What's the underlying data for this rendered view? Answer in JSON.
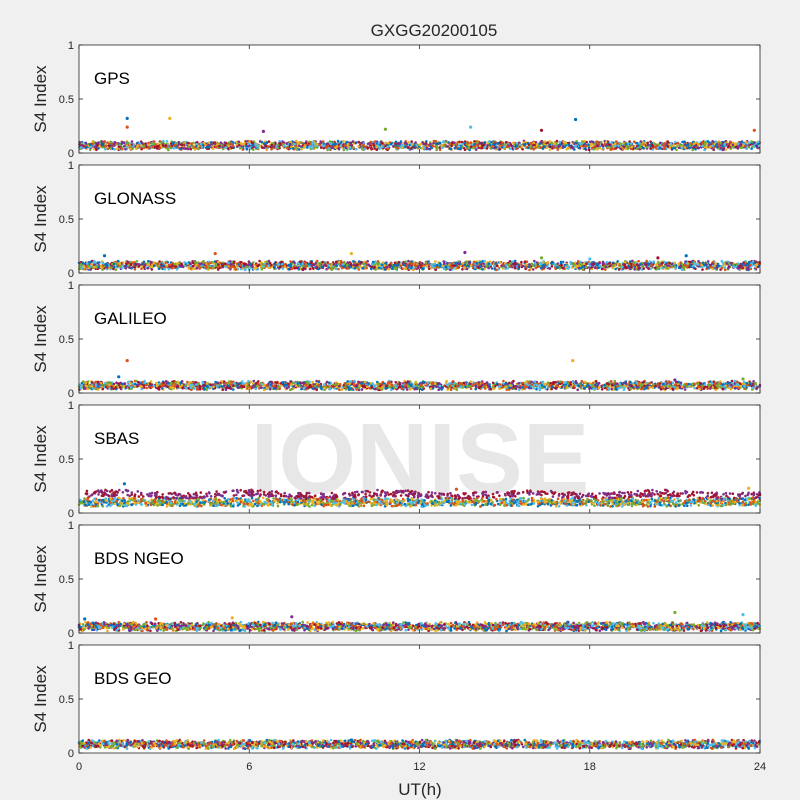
{
  "chart_data": {
    "type": "scatter",
    "title": "GXGG20200105",
    "watermark": "IONISE",
    "xlabel": "UT(h)",
    "xlim": [
      0,
      24
    ],
    "xticks": [
      "0",
      "6",
      "12",
      "18",
      "24"
    ],
    "grid": false,
    "palette": [
      "#0072bd",
      "#d95319",
      "#edb120",
      "#7e2f8e",
      "#77ac30",
      "#4dbeee",
      "#a2142f"
    ],
    "panels": [
      {
        "label": "GPS",
        "ylabel": "S4 Index",
        "ylim": [
          0,
          1
        ],
        "yticks": [
          "0",
          "0.5",
          "1"
        ],
        "baseline": 0.07,
        "outliers": [
          [
            1.7,
            0.32
          ],
          [
            1.7,
            0.24
          ],
          [
            3.2,
            0.32
          ],
          [
            6.5,
            0.2
          ],
          [
            10.8,
            0.22
          ],
          [
            13.8,
            0.24
          ],
          [
            16.3,
            0.21
          ],
          [
            17.5,
            0.31
          ],
          [
            23.8,
            0.21
          ]
        ]
      },
      {
        "label": "GLONASS",
        "ylabel": "S4 Index",
        "ylim": [
          0,
          1
        ],
        "yticks": [
          "0",
          "0.5",
          "1"
        ],
        "baseline": 0.07,
        "outliers": [
          [
            0.9,
            0.16
          ],
          [
            4.8,
            0.18
          ],
          [
            9.6,
            0.18
          ],
          [
            13.6,
            0.19
          ],
          [
            16.3,
            0.14
          ],
          [
            18.0,
            0.13
          ],
          [
            20.4,
            0.14
          ],
          [
            21.4,
            0.16
          ]
        ]
      },
      {
        "label": "GALILEO",
        "ylabel": "S4 Index",
        "ylim": [
          0,
          1
        ],
        "yticks": [
          "0",
          "0.5",
          "1"
        ],
        "baseline": 0.07,
        "outliers": [
          [
            1.4,
            0.15
          ],
          [
            1.7,
            0.3
          ],
          [
            17.4,
            0.3
          ],
          [
            21.0,
            0.12
          ],
          [
            23.4,
            0.13
          ]
        ]
      },
      {
        "label": "SBAS",
        "ylabel": "S4 Index",
        "ylim": [
          0,
          1
        ],
        "yticks": [
          "0",
          "0.5",
          "1"
        ],
        "baseline": 0.1,
        "upper_band": 0.17,
        "outliers": [
          [
            1.6,
            0.27
          ],
          [
            13.3,
            0.22
          ],
          [
            23.6,
            0.23
          ]
        ]
      },
      {
        "label": "BDS NGEO",
        "ylabel": "S4 Index",
        "ylim": [
          0,
          1
        ],
        "yticks": [
          "0",
          "0.5",
          "1"
        ],
        "baseline": 0.06,
        "outliers": [
          [
            0.2,
            0.13
          ],
          [
            2.7,
            0.13
          ],
          [
            5.4,
            0.14
          ],
          [
            7.5,
            0.15
          ],
          [
            21.0,
            0.19
          ],
          [
            23.4,
            0.17
          ]
        ]
      },
      {
        "label": "BDS GEO",
        "ylabel": "S4 Index",
        "ylim": [
          0,
          1
        ],
        "yticks": [
          "0",
          "0.5",
          "1"
        ],
        "baseline": 0.08,
        "outliers": [
          [
            9.6,
            0.12
          ],
          [
            13.4,
            0.11
          ]
        ]
      }
    ]
  }
}
